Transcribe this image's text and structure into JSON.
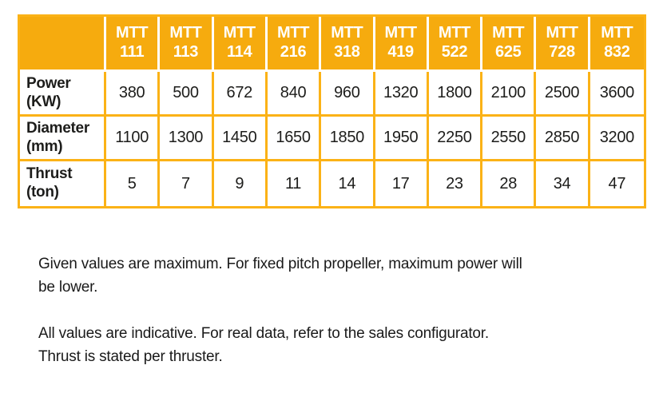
{
  "table": {
    "columns": [
      {
        "line1": "MTT",
        "line2": "111"
      },
      {
        "line1": "MTT",
        "line2": "113"
      },
      {
        "line1": "MTT",
        "line2": "114"
      },
      {
        "line1": "MTT",
        "line2": "216"
      },
      {
        "line1": "MTT",
        "line2": "318"
      },
      {
        "line1": "MTT",
        "line2": "419"
      },
      {
        "line1": "MTT",
        "line2": "522"
      },
      {
        "line1": "MTT",
        "line2": "625"
      },
      {
        "line1": "MTT",
        "line2": "728"
      },
      {
        "line1": "MTT",
        "line2": "832"
      }
    ],
    "rows": [
      {
        "label_line1": "Power",
        "label_line2": "(KW)",
        "values": [
          "380",
          "500",
          "672",
          "840",
          "960",
          "1320",
          "1800",
          "2100",
          "2500",
          "3600"
        ]
      },
      {
        "label_line1": "Diameter",
        "label_line2": "(mm)",
        "values": [
          "1100",
          "1300",
          "1450",
          "1650",
          "1850",
          "1950",
          "2250",
          "2550",
          "2850",
          "3200"
        ]
      },
      {
        "label_line1": "Thrust",
        "label_line2": "(ton)",
        "values": [
          "5",
          "7",
          "9",
          "11",
          "14",
          "17",
          "23",
          "28",
          "34",
          "47"
        ]
      }
    ]
  },
  "notes": [
    {
      "lines": [
        "Given values are maximum. For fixed pitch propeller, maximum power will",
        "be lower."
      ]
    },
    {
      "lines": [
        "All values are indicative. For real data, refer to the sales configurator.",
        "Thrust is stated per thruster."
      ]
    }
  ],
  "colors": {
    "header_background": "#F6AB0E",
    "table_border": "#FBB216",
    "header_text": "#FFFFFF",
    "body_text": "#1D1D1B"
  }
}
